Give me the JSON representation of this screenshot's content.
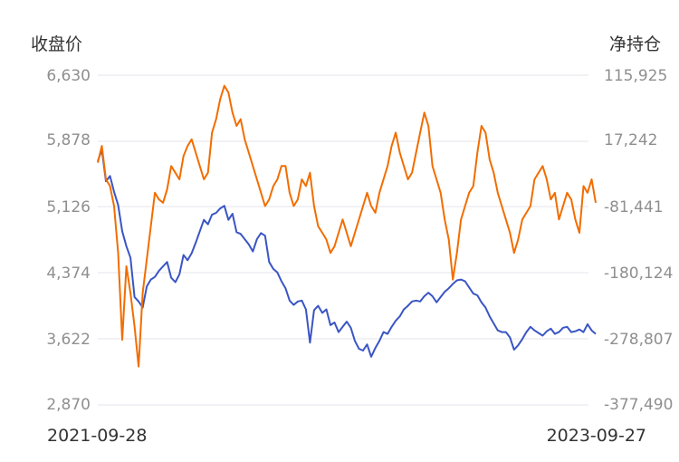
{
  "chart_data": {
    "type": "line",
    "left_axis_label": "收盘价",
    "right_axis_label": "净持仓",
    "left_ticks": [
      "6,630",
      "5,878",
      "5,126",
      "4,374",
      "3,622",
      "2,870"
    ],
    "right_ticks": [
      "115,925",
      "17,242",
      "-81,441",
      "-180,124",
      "-278,807",
      "-377,490"
    ],
    "left_ylim": [
      2870,
      6630
    ],
    "right_ylim": [
      -377490,
      115925
    ],
    "x_start": "2021-09-28",
    "x_end": "2023-09-27",
    "grid": true,
    "series": [
      {
        "color": "#3a55c4",
        "axis": "left",
        "values": [
          5650,
          5780,
          5420,
          5480,
          5300,
          5150,
          4850,
          4680,
          4550,
          4100,
          4050,
          3980,
          4220,
          4300,
          4330,
          4400,
          4450,
          4500,
          4320,
          4270,
          4360,
          4580,
          4520,
          4600,
          4720,
          4850,
          4980,
          4930,
          5040,
          5060,
          5110,
          5140,
          4980,
          5050,
          4840,
          4820,
          4760,
          4700,
          4620,
          4760,
          4830,
          4800,
          4500,
          4420,
          4380,
          4280,
          4200,
          4060,
          4010,
          4050,
          4060,
          3960,
          3580,
          3950,
          4000,
          3920,
          3960,
          3780,
          3810,
          3700,
          3760,
          3820,
          3750,
          3600,
          3510,
          3490,
          3560,
          3420,
          3520,
          3600,
          3700,
          3680,
          3760,
          3830,
          3880,
          3960,
          4000,
          4050,
          4060,
          4050,
          4110,
          4150,
          4110,
          4040,
          4100,
          4160,
          4200,
          4250,
          4290,
          4300,
          4280,
          4210,
          4140,
          4120,
          4040,
          3980,
          3880,
          3800,
          3720,
          3700,
          3700,
          3640,
          3500,
          3550,
          3620,
          3700,
          3760,
          3720,
          3690,
          3660,
          3710,
          3740,
          3680,
          3700,
          3750,
          3760,
          3700,
          3710,
          3730,
          3700,
          3790,
          3720,
          3680
        ]
      },
      {
        "color": "#f26d00",
        "axis": "right",
        "values": [
          -15000,
          10000,
          -40000,
          -50000,
          -80000,
          -150000,
          -280000,
          -170000,
          -210000,
          -260000,
          -320000,
          -210000,
          -160000,
          -110000,
          -60000,
          -70000,
          -75000,
          -55000,
          -20000,
          -30000,
          -40000,
          -5000,
          10000,
          20000,
          0,
          -20000,
          -40000,
          -30000,
          30000,
          50000,
          80000,
          100000,
          90000,
          60000,
          40000,
          50000,
          20000,
          0,
          -20000,
          -40000,
          -60000,
          -80000,
          -70000,
          -50000,
          -40000,
          -20000,
          -20000,
          -60000,
          -80000,
          -70000,
          -40000,
          -50000,
          -30000,
          -80000,
          -110000,
          -120000,
          -130000,
          -150000,
          -140000,
          -120000,
          -100000,
          -120000,
          -140000,
          -120000,
          -100000,
          -80000,
          -60000,
          -80000,
          -90000,
          -60000,
          -40000,
          -20000,
          10000,
          30000,
          0,
          -20000,
          -40000,
          -30000,
          0,
          30000,
          60000,
          40000,
          -20000,
          -40000,
          -60000,
          -100000,
          -130000,
          -190000,
          -150000,
          -100000,
          -80000,
          -60000,
          -50000,
          0,
          40000,
          30000,
          -10000,
          -30000,
          -60000,
          -80000,
          -100000,
          -120000,
          -150000,
          -130000,
          -100000,
          -90000,
          -80000,
          -40000,
          -30000,
          -20000,
          -40000,
          -70000,
          -60000,
          -100000,
          -80000,
          -60000,
          -70000,
          -100000,
          -120000,
          -50000,
          -60000,
          -40000,
          -75000
        ]
      }
    ]
  }
}
